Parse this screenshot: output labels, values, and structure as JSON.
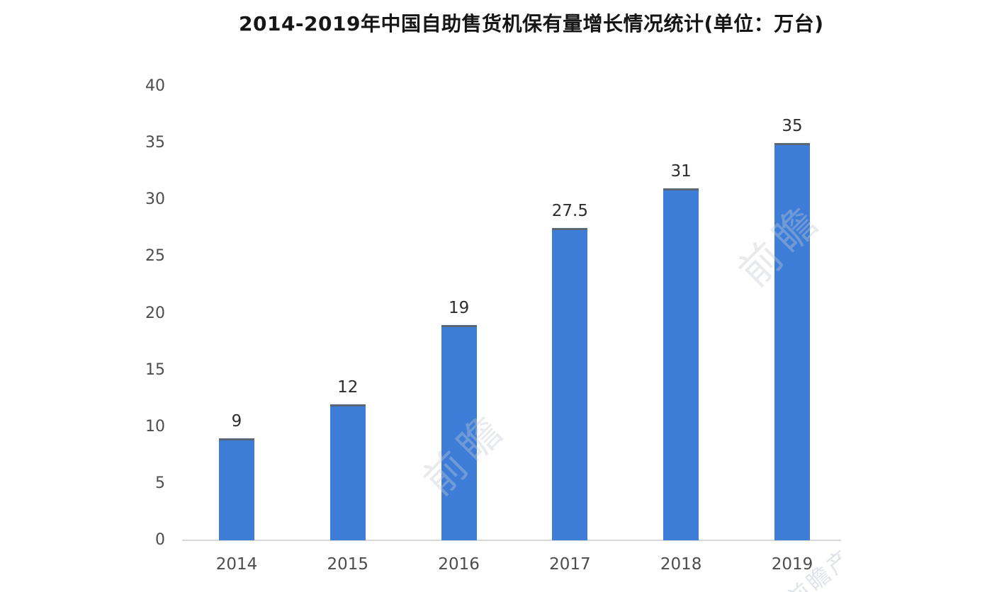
{
  "title": "2014-2019年中国自助售货机保有量增长情况统计(单位：万台)",
  "chart_data": {
    "type": "bar",
    "title": "2014-2019年中国自助售货机保有量增长情况统计(单位：万台)",
    "categories": [
      "2014",
      "2015",
      "2016",
      "2017",
      "2018",
      "2019"
    ],
    "values": [
      9,
      12,
      19,
      27.5,
      31,
      35
    ],
    "value_labels": [
      "9",
      "12",
      "19",
      "27.5",
      "31",
      "35"
    ],
    "xlabel": "",
    "ylabel": "",
    "ylim": [
      0,
      40
    ],
    "yticks": [
      0,
      5,
      10,
      15,
      20,
      25,
      30,
      35,
      40
    ],
    "grid": false,
    "legend": "none",
    "bar_color": "#3d7dd8",
    "axis_line_color": "#d8d8d8",
    "unit": "万台"
  },
  "watermarks": {
    "wm1": "前瞻",
    "wm2": "前瞻",
    "wm3": "前瞻产业研究院"
  }
}
